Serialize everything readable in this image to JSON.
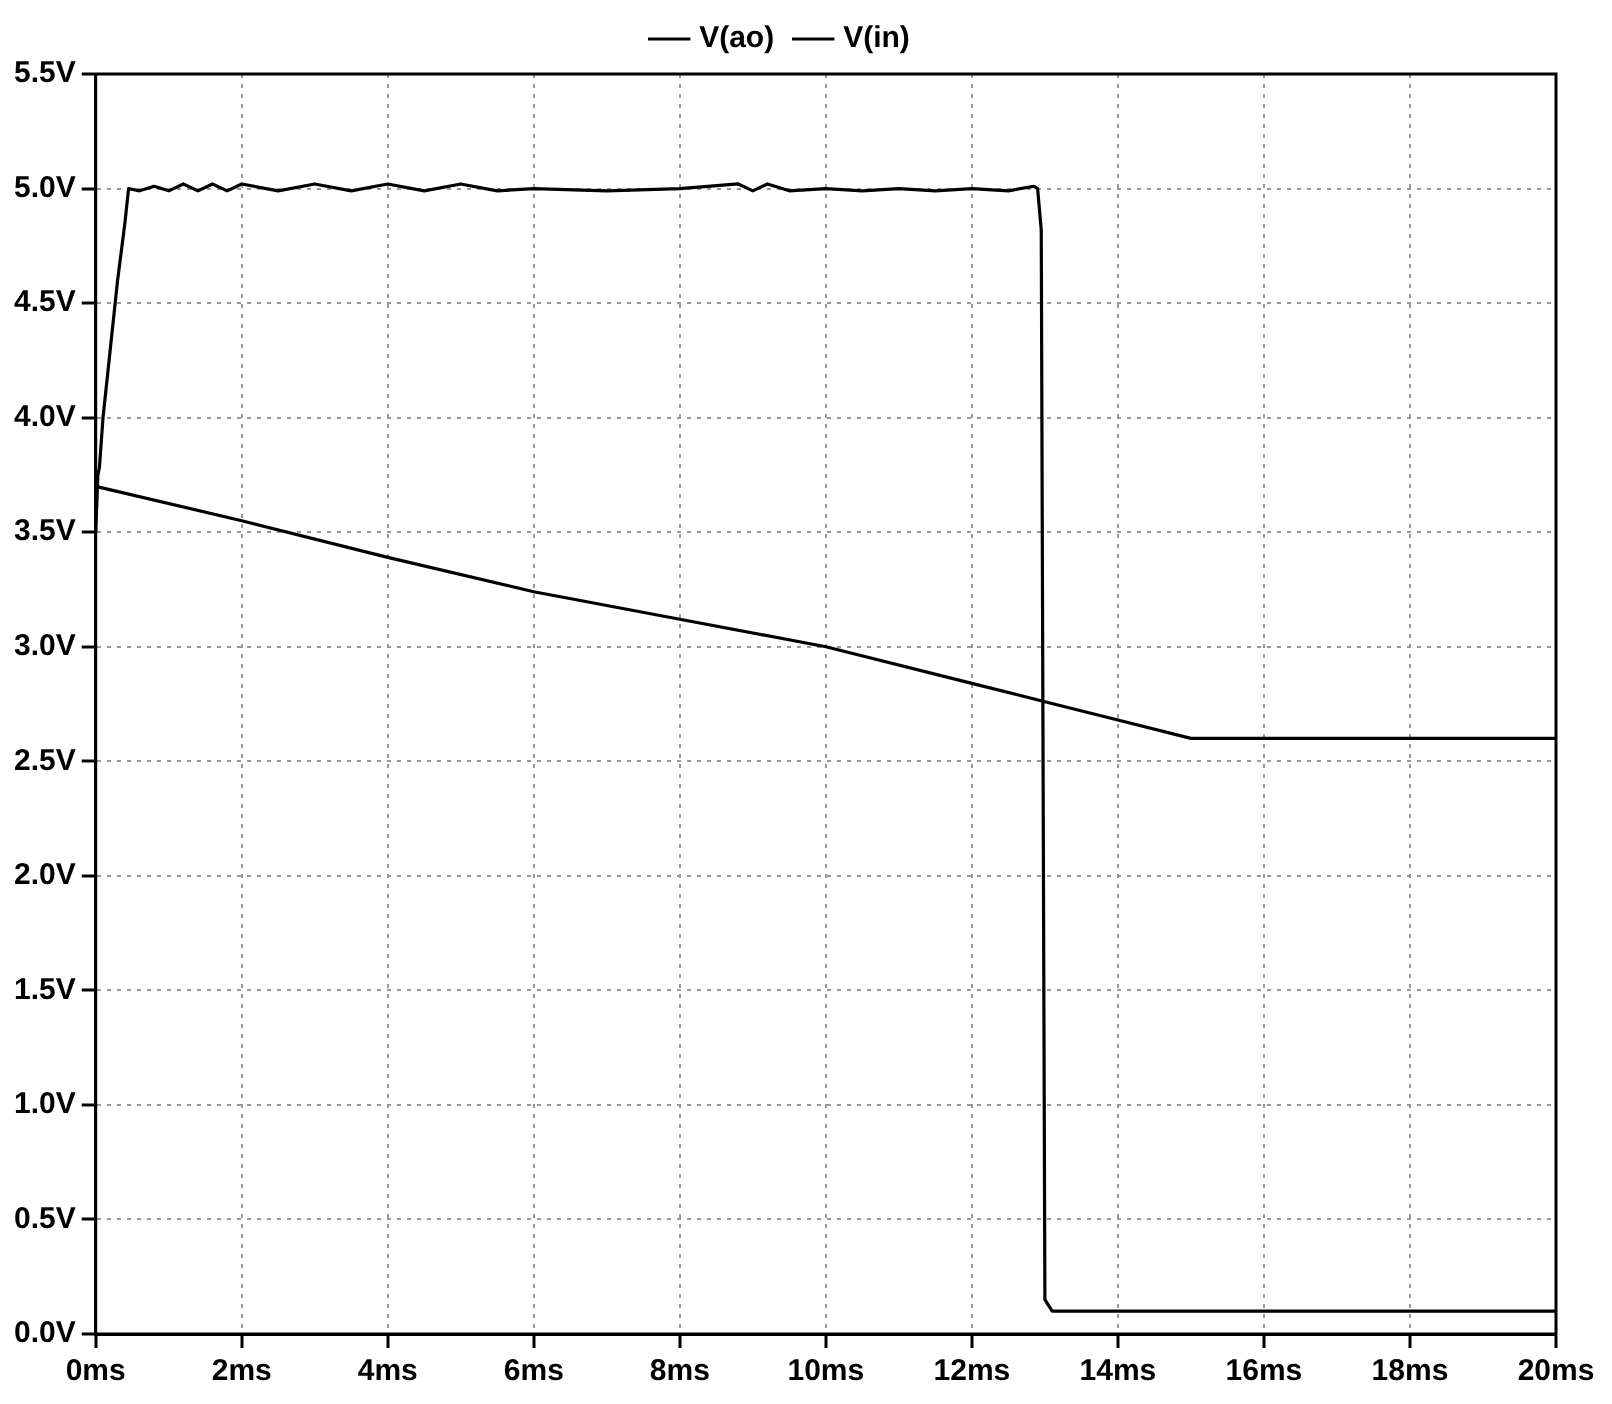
{
  "chart_data": {
    "type": "line",
    "legend": "top",
    "grid": true,
    "marker": "none",
    "line_style": "solid",
    "xlim": [
      0,
      20
    ],
    "xticks": [
      {
        "value": 0,
        "label": "0ms"
      },
      {
        "value": 2,
        "label": "2ms"
      },
      {
        "value": 4,
        "label": "4ms"
      },
      {
        "value": 6,
        "label": "6ms"
      },
      {
        "value": 8,
        "label": "8ms"
      },
      {
        "value": 10,
        "label": "10ms"
      },
      {
        "value": 12,
        "label": "12ms"
      },
      {
        "value": 14,
        "label": "14ms"
      },
      {
        "value": 16,
        "label": "16ms"
      },
      {
        "value": 18,
        "label": "18ms"
      },
      {
        "value": 20,
        "label": "20ms"
      }
    ],
    "ylim": [
      0,
      5.5
    ],
    "yticks": [
      {
        "value": 0,
        "label": "0.0V"
      },
      {
        "value": 0.5,
        "label": "0.5V"
      },
      {
        "value": 1,
        "label": "1.0V"
      },
      {
        "value": 1.5,
        "label": "1.5V"
      },
      {
        "value": 2,
        "label": "2.0V"
      },
      {
        "value": 2.5,
        "label": "2.5V"
      },
      {
        "value": 3,
        "label": "3.0V"
      },
      {
        "value": 3.5,
        "label": "3.5V"
      },
      {
        "value": 4,
        "label": "4.0V"
      },
      {
        "value": 4.5,
        "label": "4.5V"
      },
      {
        "value": 5,
        "label": "5.0V"
      },
      {
        "value": 5.5,
        "label": "5.5V"
      }
    ],
    "series": [
      {
        "name": "V(ao)",
        "color": "#000000",
        "x": [
          0,
          0.03,
          0.05,
          0.1,
          0.2,
          0.3,
          0.4,
          0.45,
          0.6,
          0.8,
          1.0,
          1.2,
          1.4,
          1.6,
          1.8,
          2.0,
          2.5,
          3.0,
          3.5,
          4.0,
          4.5,
          5.0,
          5.5,
          6.0,
          7.0,
          8.0,
          8.8,
          9.0,
          9.2,
          9.5,
          10.0,
          10.5,
          11.0,
          11.5,
          12.0,
          12.5,
          12.85,
          12.9,
          12.95,
          13.0,
          13.1,
          14,
          16,
          18,
          20
        ],
        "values": [
          3.5,
          3.75,
          3.78,
          4.0,
          4.3,
          4.6,
          4.85,
          5.0,
          4.99,
          5.01,
          4.99,
          5.02,
          4.99,
          5.02,
          4.99,
          5.02,
          4.99,
          5.02,
          4.99,
          5.02,
          4.99,
          5.02,
          4.99,
          5.0,
          4.99,
          5.0,
          5.02,
          4.99,
          5.02,
          4.99,
          5.0,
          4.99,
          5.0,
          4.99,
          5.0,
          4.99,
          5.01,
          5.0,
          4.82,
          0.15,
          0.1,
          0.1,
          0.1,
          0.1,
          0.1
        ]
      },
      {
        "name": "V(in)",
        "color": "#000000",
        "x": [
          0,
          2,
          4,
          6,
          8,
          10,
          12,
          13,
          14,
          15,
          16,
          18,
          20
        ],
        "values": [
          3.7,
          3.55,
          3.39,
          3.24,
          3.12,
          3.0,
          2.84,
          2.76,
          2.68,
          2.6,
          2.6,
          2.6,
          2.6
        ]
      }
    ]
  }
}
